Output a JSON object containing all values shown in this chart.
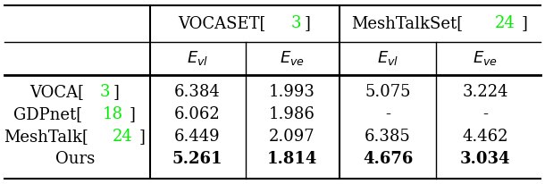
{
  "col_headers_top": [
    {
      "text": "VOCASET[",
      "ref": "3",
      "close": "]"
    },
    {
      "text": "MeshTalkSet[",
      "ref": "24",
      "close": "]"
    }
  ],
  "col_headers_sub": [
    "vl",
    "ve",
    "vl",
    "ve"
  ],
  "row_labels": [
    {
      "base": "VOCA[",
      "ref": "3",
      "close": "]"
    },
    {
      "base": "GDPnet[",
      "ref": "18",
      "close": "]"
    },
    {
      "base": "MeshTalk[",
      "ref": "24",
      "close": "]"
    },
    {
      "base": "Ours",
      "ref": "",
      "close": ""
    }
  ],
  "data": [
    [
      "6.384",
      "1.993",
      "5.075",
      "3.224"
    ],
    [
      "6.062",
      "1.986",
      "-",
      "-"
    ],
    [
      "6.449",
      "2.097",
      "6.385",
      "4.462"
    ],
    [
      "5.261",
      "1.814",
      "4.676",
      "3.034"
    ]
  ],
  "bold_rows": [
    3
  ],
  "background_color": "#ffffff",
  "line_color": "#000000",
  "green_color": "#00ee00",
  "fontsize": 13,
  "figwidth": 6.1,
  "figheight": 2.06,
  "dpi": 100
}
